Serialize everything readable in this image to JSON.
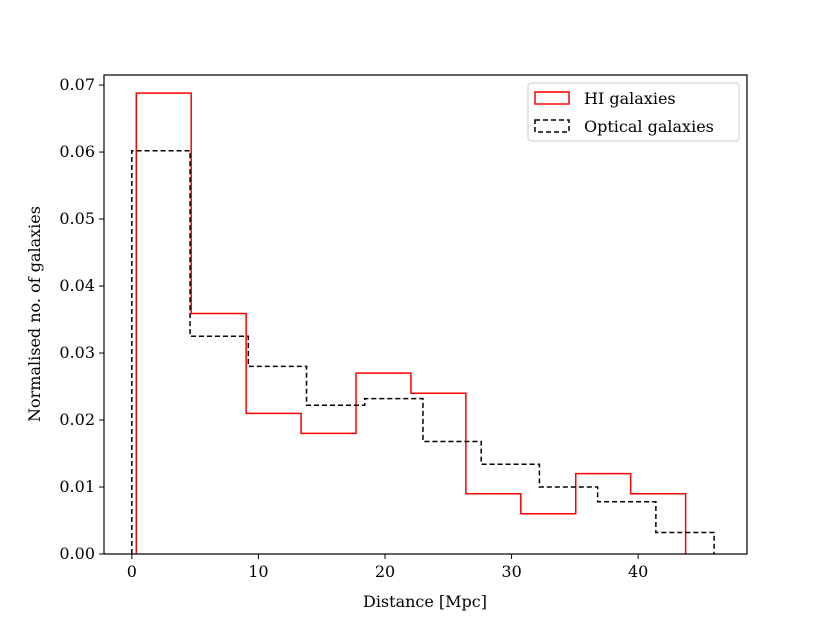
{
  "chart_data": {
    "type": "histogram-step",
    "xlabel": "Distance [Mpc]",
    "ylabel": "Normalised no. of galaxies",
    "xlim": [
      -2.2,
      48.6
    ],
    "ylim": [
      0,
      0.0715
    ],
    "xticks": [
      0,
      10,
      20,
      30,
      40
    ],
    "xtick_labels": [
      "0",
      "10",
      "20",
      "30",
      "40"
    ],
    "yticks": [
      0,
      0.01,
      0.02,
      0.03,
      0.04,
      0.05,
      0.06,
      0.07
    ],
    "ytick_labels": [
      "0.00",
      "0.01",
      "0.02",
      "0.03",
      "0.04",
      "0.05",
      "0.06",
      "0.07"
    ],
    "legend_position": "top-right",
    "series": [
      {
        "name": "HI galaxies",
        "color": "#ff0000",
        "style": "solid",
        "bin_edges": [
          0.35,
          4.69,
          9.03,
          13.37,
          17.71,
          22.05,
          26.39,
          30.73,
          35.07,
          39.41,
          43.75
        ],
        "values": [
          0.0688,
          0.0359,
          0.021,
          0.018,
          0.027,
          0.024,
          0.009,
          0.006,
          0.012,
          0.009
        ]
      },
      {
        "name": "Optical galaxies",
        "color": "#000000",
        "style": "dashed",
        "bin_edges": [
          0.0,
          4.6,
          9.2,
          13.8,
          18.4,
          23.0,
          27.6,
          32.2,
          36.8,
          41.4,
          46.0
        ],
        "values": [
          0.0602,
          0.0325,
          0.028,
          0.0222,
          0.0232,
          0.0168,
          0.0134,
          0.01,
          0.0078,
          0.0032
        ]
      }
    ]
  }
}
